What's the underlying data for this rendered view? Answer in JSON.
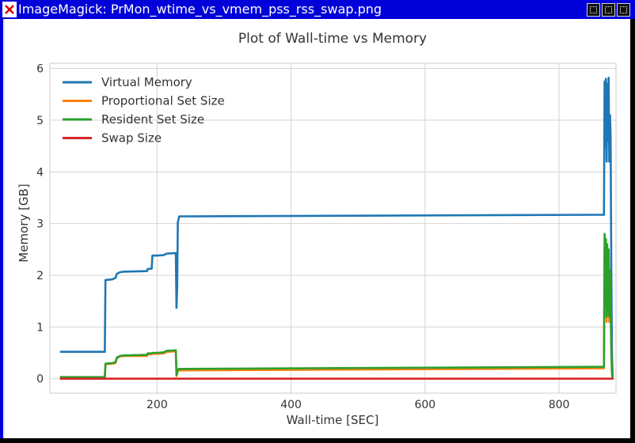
{
  "window": {
    "title": "ImageMagick: PrMon_wtime_vs_vmem_pss_rss_swap.png",
    "icons": [
      "close-icon",
      "minimize-icon",
      "maximize-icon",
      "window-close-icon"
    ]
  },
  "chart_data": {
    "type": "line",
    "title": "Plot of Wall-time vs Memory",
    "xlabel": "Wall-time [SEC]",
    "ylabel": "Memory [GB]",
    "xlim": [
      40,
      885
    ],
    "ylim": [
      -0.28,
      6.1
    ],
    "xticks": [
      200,
      400,
      600,
      800
    ],
    "yticks": [
      0,
      1,
      2,
      3,
      4,
      5,
      6
    ],
    "grid": true,
    "legend_position": "top-left",
    "colors": {
      "Virtual Memory": "#1f77b4",
      "Proportional Set Size": "#ff7f0e",
      "Resident Set Size": "#2ca02c",
      "Swap Size": "#d62728"
    },
    "series": [
      {
        "name": "Virtual Memory",
        "x": [
          55,
          122,
          123,
          133,
          138,
          140,
          145,
          150,
          185,
          186,
          192,
          193,
          200,
          210,
          211,
          215,
          228,
          229,
          230,
          231,
          233,
          235,
          240,
          860,
          867,
          868,
          869,
          870,
          871,
          872,
          873,
          874,
          875,
          876,
          877,
          878,
          879,
          880,
          881
        ],
        "values": [
          0.52,
          0.52,
          1.91,
          1.92,
          1.95,
          2.03,
          2.06,
          2.07,
          2.08,
          2.12,
          2.13,
          2.38,
          2.38,
          2.39,
          2.4,
          2.42,
          2.43,
          1.37,
          1.8,
          3.02,
          3.14,
          3.14,
          3.14,
          3.17,
          3.17,
          5.75,
          4.5,
          5.8,
          4.2,
          5.7,
          4.6,
          5.82,
          4.2,
          5.1,
          4.7,
          2.0,
          0.5,
          0.0,
          0.0
        ]
      },
      {
        "name": "Proportional Set Size",
        "x": [
          55,
          122,
          123,
          133,
          138,
          140,
          145,
          150,
          185,
          186,
          192,
          193,
          200,
          210,
          211,
          215,
          228,
          229,
          230,
          231,
          233,
          235,
          240,
          860,
          867,
          868,
          869,
          870,
          871,
          872,
          873,
          874,
          875,
          876,
          877,
          878,
          879,
          880,
          881
        ],
        "values": [
          0.02,
          0.02,
          0.28,
          0.29,
          0.3,
          0.4,
          0.43,
          0.44,
          0.44,
          0.47,
          0.47,
          0.48,
          0.48,
          0.49,
          0.5,
          0.52,
          0.53,
          0.05,
          0.1,
          0.15,
          0.16,
          0.16,
          0.16,
          0.2,
          0.2,
          2.5,
          1.2,
          2.6,
          1.1,
          2.4,
          1.2,
          2.3,
          1.1,
          1.8,
          1.4,
          0.5,
          0.1,
          0.0,
          0.0
        ]
      },
      {
        "name": "Resident Set Size",
        "x": [
          55,
          122,
          123,
          133,
          138,
          140,
          145,
          150,
          185,
          186,
          192,
          193,
          200,
          210,
          211,
          215,
          228,
          229,
          230,
          231,
          233,
          235,
          240,
          860,
          867,
          868,
          869,
          870,
          871,
          872,
          873,
          874,
          875,
          876,
          877,
          878,
          879,
          880,
          881
        ],
        "values": [
          0.03,
          0.03,
          0.29,
          0.3,
          0.32,
          0.41,
          0.44,
          0.45,
          0.46,
          0.49,
          0.49,
          0.5,
          0.5,
          0.51,
          0.52,
          0.54,
          0.55,
          0.07,
          0.12,
          0.18,
          0.19,
          0.19,
          0.19,
          0.23,
          0.23,
          2.8,
          1.4,
          2.7,
          1.2,
          2.6,
          1.3,
          2.5,
          1.2,
          2.1,
          1.6,
          0.6,
          0.12,
          0.0,
          0.0
        ]
      },
      {
        "name": "Swap Size",
        "x": [
          55,
          881
        ],
        "values": [
          0.0,
          0.0
        ]
      }
    ]
  }
}
